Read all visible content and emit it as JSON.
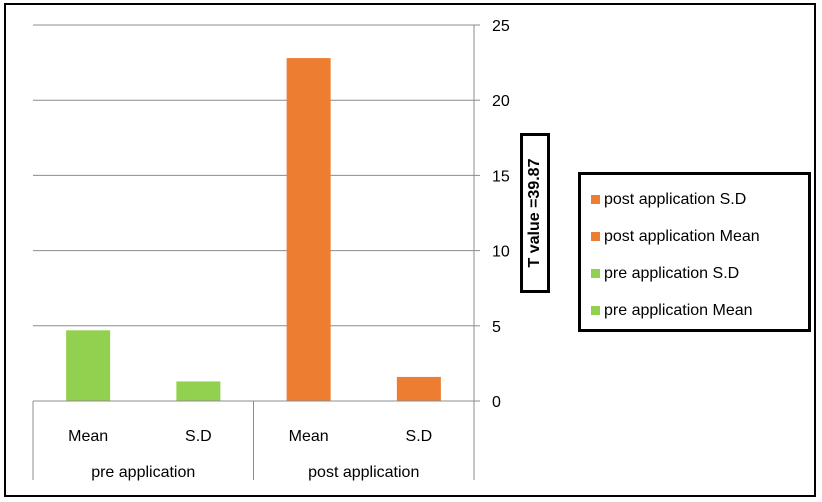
{
  "chart_data": {
    "type": "bar",
    "groups": [
      {
        "label": "pre application",
        "categories": [
          "Mean",
          "S.D"
        ]
      },
      {
        "label": "post application",
        "categories": [
          "Mean",
          "S.D"
        ]
      }
    ],
    "bars": [
      {
        "group": "pre application",
        "category": "Mean",
        "value": 4.7,
        "series": "pre application Mean"
      },
      {
        "group": "pre application",
        "category": "S.D",
        "value": 1.3,
        "series": "pre application S.D"
      },
      {
        "group": "post application",
        "category": "Mean",
        "value": 22.8,
        "series": "post application Mean"
      },
      {
        "group": "post application",
        "category": "S.D",
        "value": 1.6,
        "series": "post application S.D"
      }
    ],
    "series_colors": {
      "pre application Mean": "#92d050",
      "pre application S.D": "#92d050",
      "post application Mean": "#ed7d31",
      "post application S.D": "#ed7d31"
    },
    "ylim": [
      0,
      25
    ],
    "yticks": [
      0,
      5,
      10,
      15,
      20,
      25
    ],
    "y_axis_side": "right",
    "grid": true,
    "annotation": "T value =39.87",
    "legend": {
      "position": "right",
      "entries": [
        {
          "label": "post application S.D",
          "color": "#ed7d31"
        },
        {
          "label": "post application Mean",
          "color": "#ed7d31"
        },
        {
          "label": "pre application S.D",
          "color": "#92d050"
        },
        {
          "label": "pre application Mean",
          "color": "#92d050"
        }
      ]
    }
  }
}
